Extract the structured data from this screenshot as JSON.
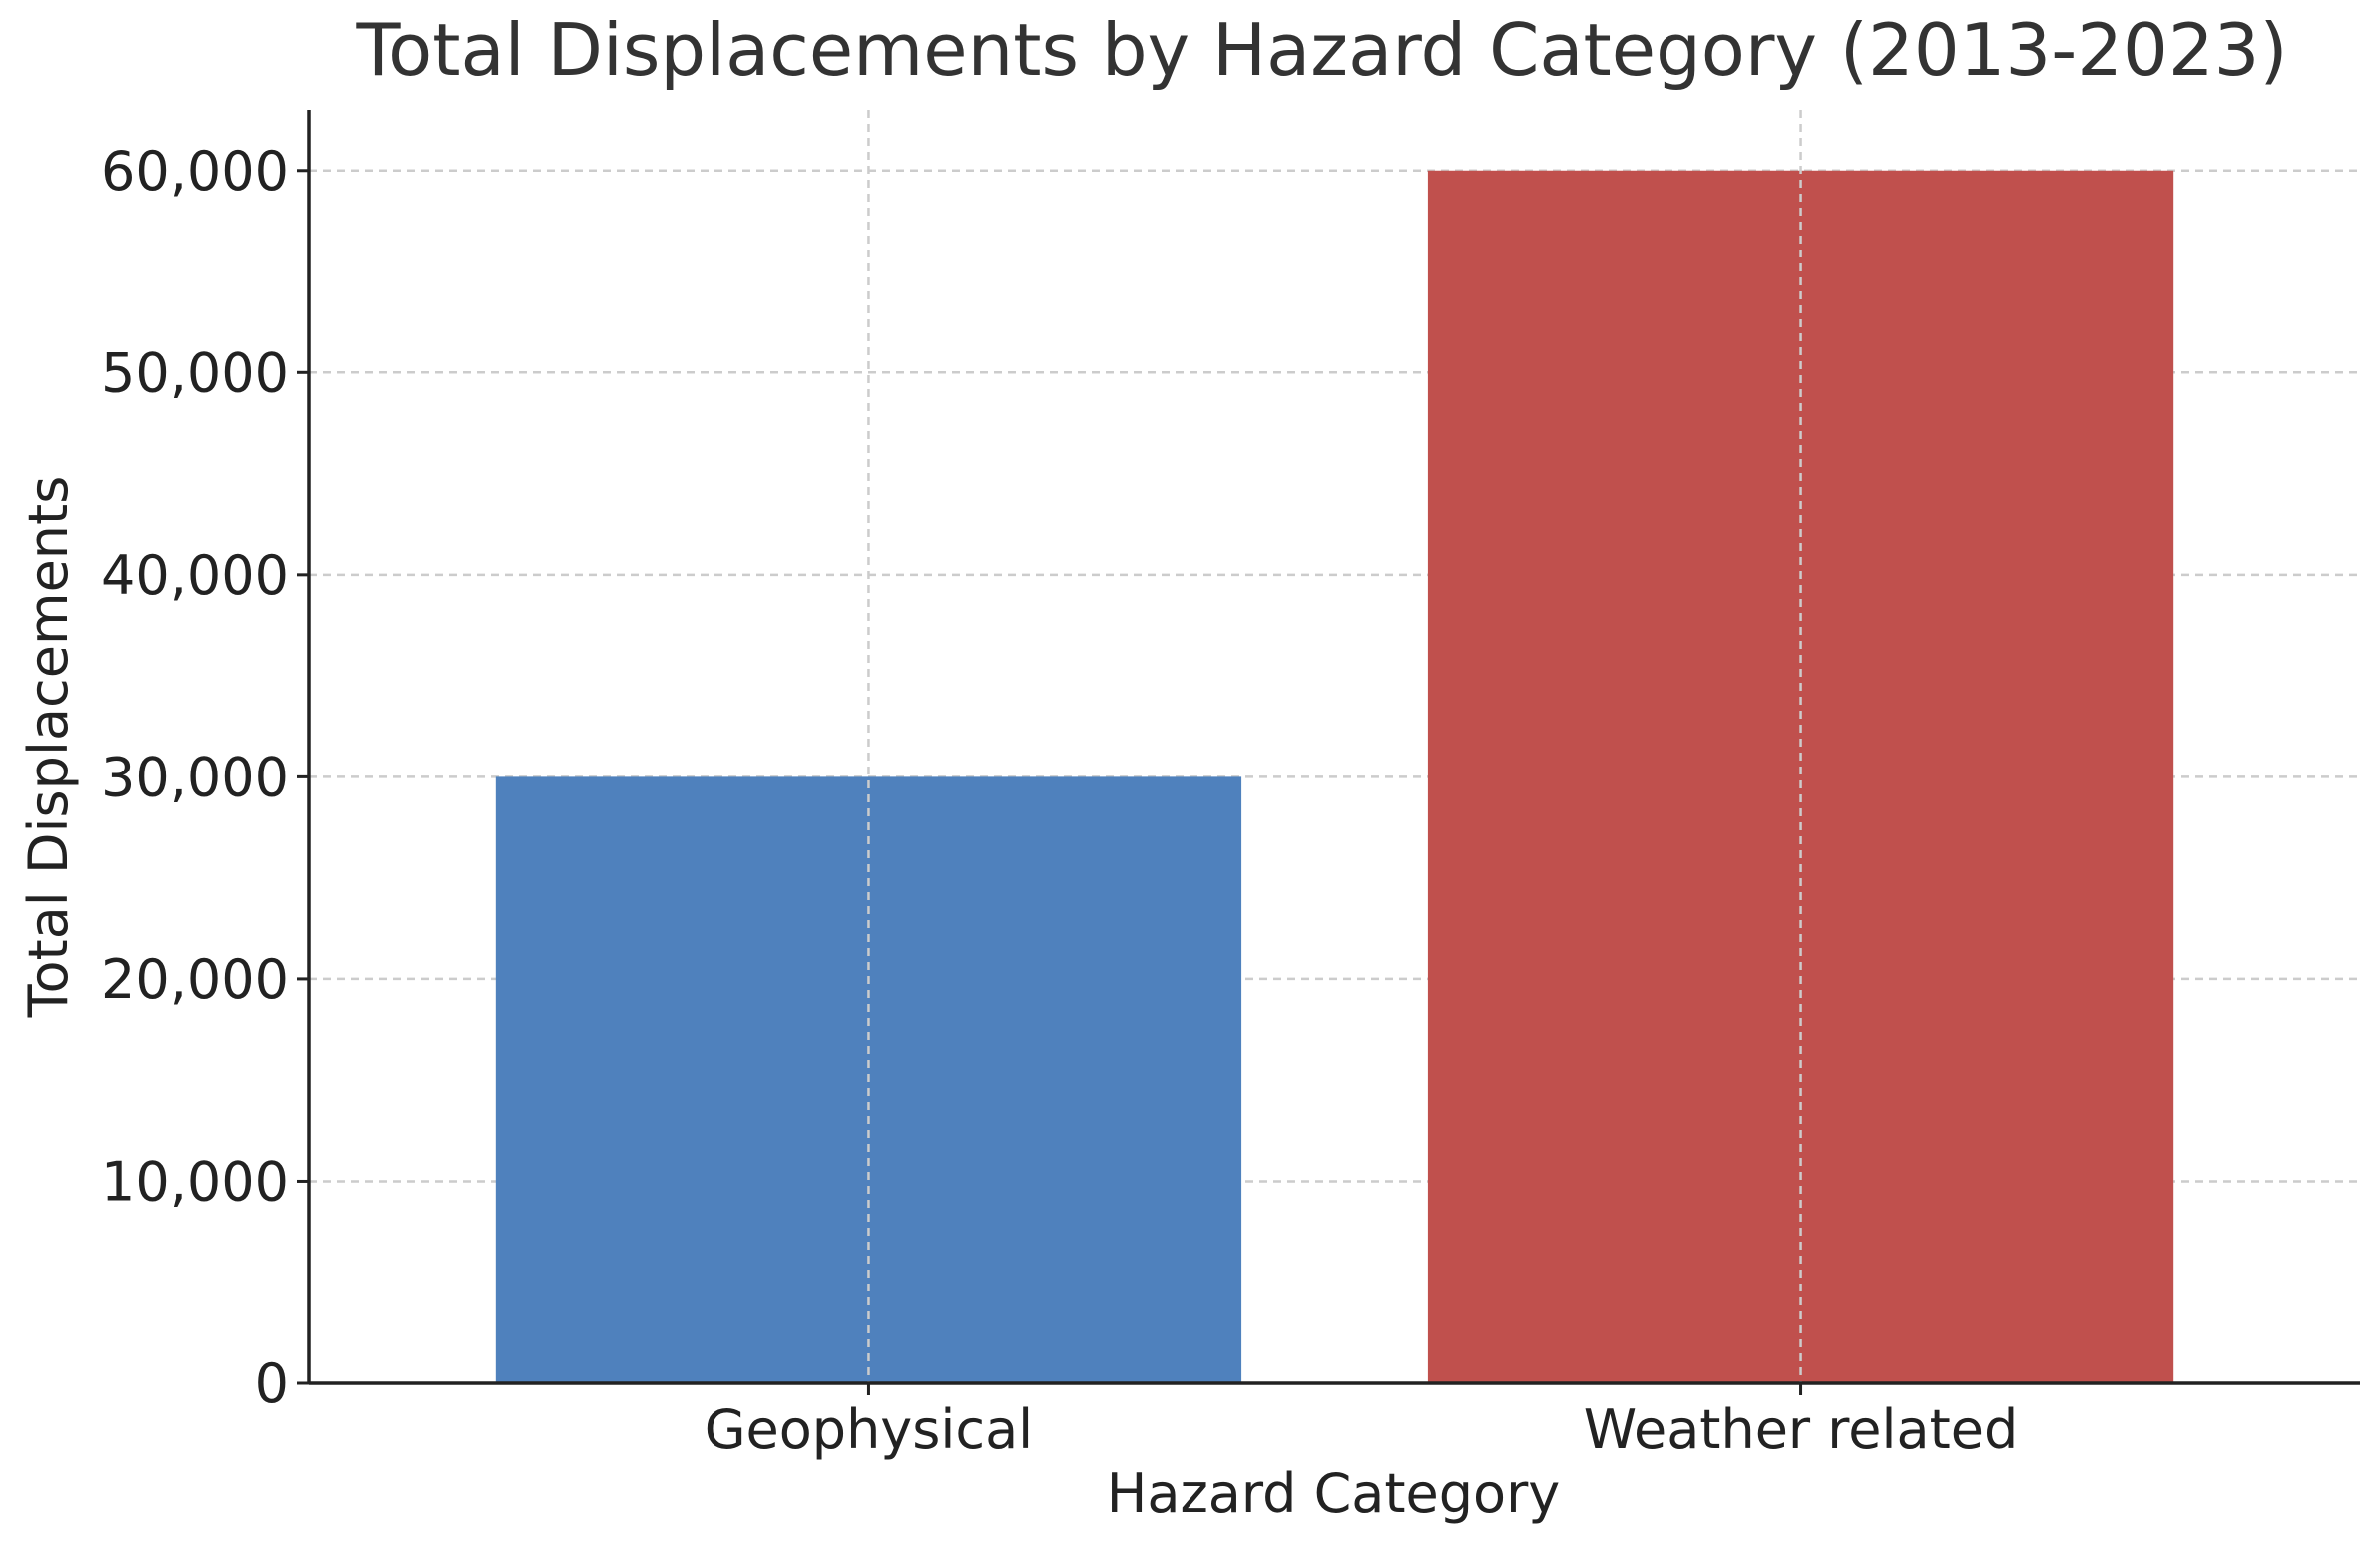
{
  "chart_data": {
    "type": "bar",
    "title": "Total Displacements by Hazard Category (2013-2023)",
    "xlabel": "Hazard Category",
    "ylabel": "Total Displacements",
    "categories": [
      "Geophysical",
      "Weather related"
    ],
    "values": [
      30000,
      60000
    ],
    "colors": [
      "#4f81bd",
      "#c0504d"
    ],
    "ylim": [
      0,
      63000
    ],
    "yticks": [
      0,
      10000,
      20000,
      30000,
      40000,
      50000,
      60000
    ],
    "ytick_labels": [
      "0",
      "10,000",
      "20,000",
      "30,000",
      "40,000",
      "50,000",
      "60,000"
    ],
    "grid": true,
    "legend": "none"
  }
}
